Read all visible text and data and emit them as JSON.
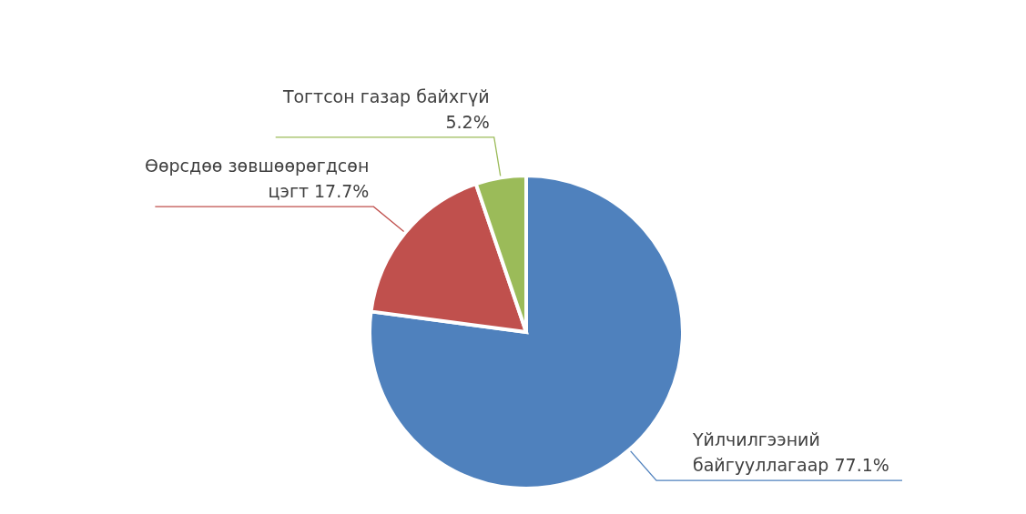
{
  "chart_data": {
    "type": "pie",
    "categories": [
      "Үйлчилгээний байгууллагаар",
      "Өөрсдөө зөвшөөрөгдсөн цэгт",
      "Тогтсон газар байхгүй"
    ],
    "values": [
      77.1,
      17.7,
      5.2
    ],
    "value_labels": [
      "77.1%",
      "17.7%",
      "5.2%"
    ],
    "colors": [
      "#4f81bd",
      "#c0504d",
      "#9bbb59"
    ],
    "legend": false
  }
}
